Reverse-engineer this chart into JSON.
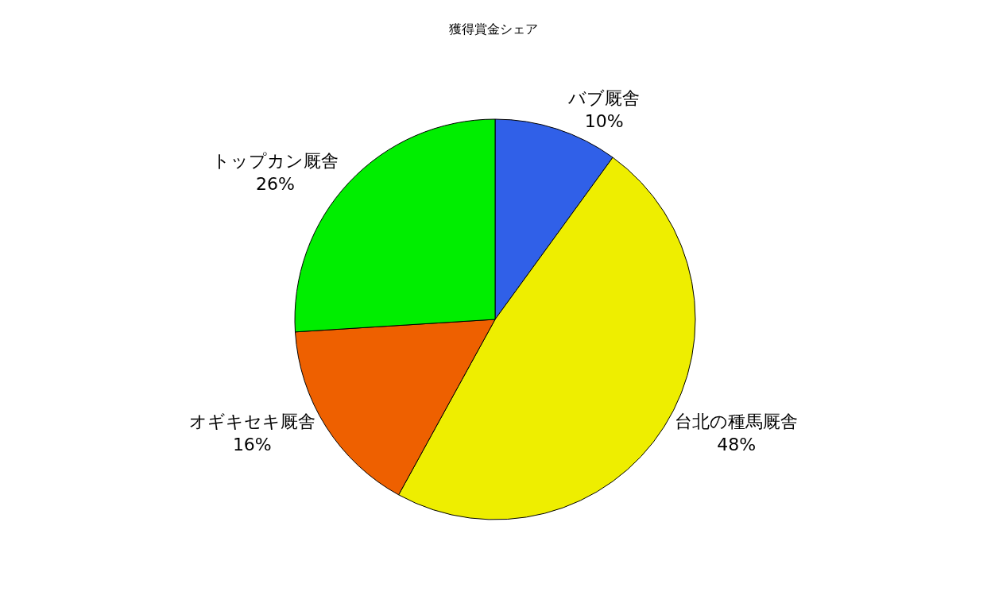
{
  "chart_data": {
    "type": "pie",
    "title": "獲得賞金シェア",
    "categories": [
      "バブ厩舎",
      "台北の種馬厩舎",
      "オギキセキ厩舎",
      "トップカン厩舎"
    ],
    "values": [
      10,
      48,
      16,
      26
    ],
    "value_labels": [
      "10%",
      "48%",
      "16%",
      "26%"
    ],
    "colors": [
      "#3060e8",
      "#eeee00",
      "#ee6000",
      "#00ee00"
    ],
    "legend": false
  }
}
